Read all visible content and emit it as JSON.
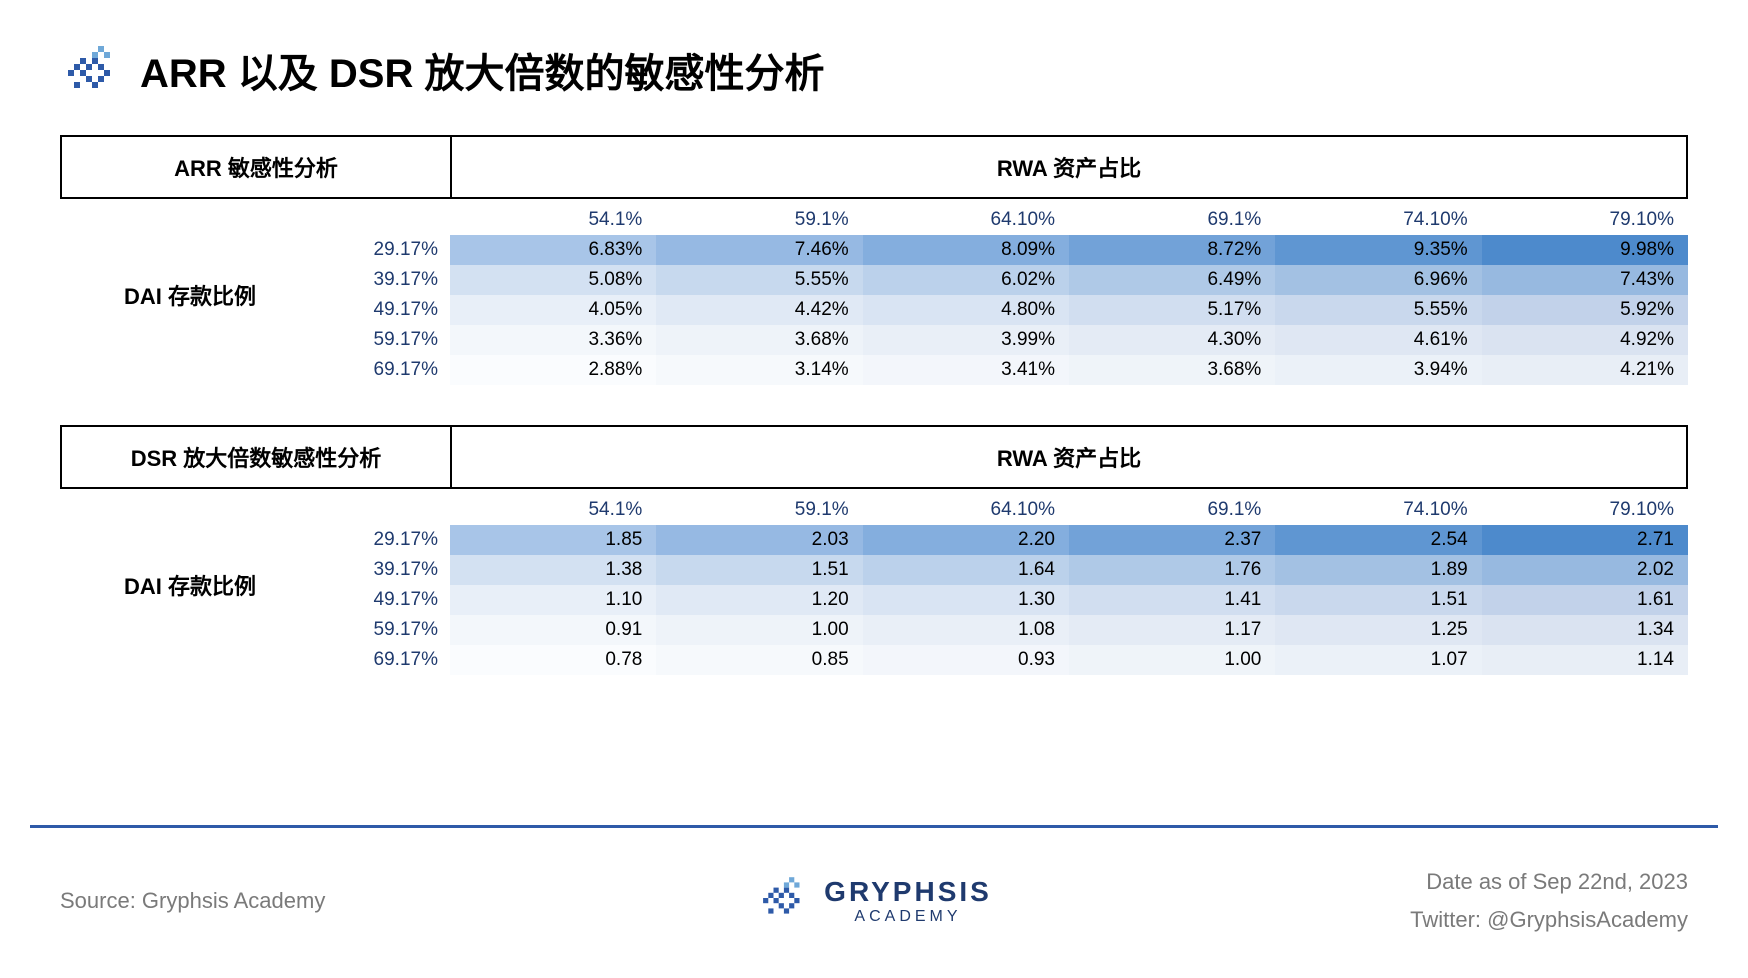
{
  "title": "ARR 以及 DSR 放大倍数的敏感性分析",
  "tables": [
    {
      "left_header": "ARR 敏感性分析",
      "right_header": "RWA 资产占比",
      "row_axis_label": "DAI 存款比例",
      "col_headers": [
        "54.1%",
        "59.1%",
        "64.10%",
        "69.1%",
        "74.10%",
        "79.10%"
      ],
      "row_headers": [
        "29.17%",
        "39.17%",
        "49.17%",
        "59.17%",
        "69.17%"
      ],
      "cells": [
        [
          "6.83%",
          "7.46%",
          "8.09%",
          "8.72%",
          "9.35%",
          "9.98%"
        ],
        [
          "5.08%",
          "5.55%",
          "6.02%",
          "6.49%",
          "6.96%",
          "7.43%"
        ],
        [
          "4.05%",
          "4.42%",
          "4.80%",
          "5.17%",
          "5.55%",
          "5.92%"
        ],
        [
          "3.36%",
          "3.68%",
          "3.99%",
          "4.30%",
          "4.61%",
          "4.92%"
        ],
        [
          "2.88%",
          "3.14%",
          "3.41%",
          "3.68%",
          "3.94%",
          "4.21%"
        ]
      ],
      "cell_colors": [
        [
          "#a8c5e8",
          "#96b9e3",
          "#84aede",
          "#72a2d8",
          "#5f96d2",
          "#4d8acc"
        ],
        [
          "#d3e1f2",
          "#c7d9ee",
          "#bbd1eb",
          "#afc9e7",
          "#a3c1e3",
          "#97b9e0"
        ],
        [
          "#e8eff8",
          "#e0e9f5",
          "#d9e4f3",
          "#d1def0",
          "#c9d8ed",
          "#c2d2ea"
        ],
        [
          "#f3f7fb",
          "#eef3f9",
          "#e9eff7",
          "#e4ebf5",
          "#dfe7f3",
          "#dae3f1"
        ],
        [
          "#fafcfe",
          "#f6f9fc",
          "#f3f6fb",
          "#eff4f9",
          "#ebf1f8",
          "#e8eef6"
        ]
      ]
    },
    {
      "left_header": "DSR 放大倍数敏感性分析",
      "right_header": "RWA 资产占比",
      "row_axis_label": "DAI 存款比例",
      "col_headers": [
        "54.1%",
        "59.1%",
        "64.10%",
        "69.1%",
        "74.10%",
        "79.10%"
      ],
      "row_headers": [
        "29.17%",
        "39.17%",
        "49.17%",
        "59.17%",
        "69.17%"
      ],
      "cells": [
        [
          "1.85",
          "2.03",
          "2.20",
          "2.37",
          "2.54",
          "2.71"
        ],
        [
          "1.38",
          "1.51",
          "1.64",
          "1.76",
          "1.89",
          "2.02"
        ],
        [
          "1.10",
          "1.20",
          "1.30",
          "1.41",
          "1.51",
          "1.61"
        ],
        [
          "0.91",
          "1.00",
          "1.08",
          "1.17",
          "1.25",
          "1.34"
        ],
        [
          "0.78",
          "0.85",
          "0.93",
          "1.00",
          "1.07",
          "1.14"
        ]
      ],
      "cell_colors": [
        [
          "#a8c5e8",
          "#96b9e3",
          "#84aede",
          "#72a2d8",
          "#5f96d2",
          "#4d8acc"
        ],
        [
          "#d3e1f2",
          "#c7d9ee",
          "#bbd1eb",
          "#afc9e7",
          "#a3c1e3",
          "#97b9e0"
        ],
        [
          "#e8eff8",
          "#e0e9f5",
          "#d9e4f3",
          "#d1def0",
          "#c9d8ed",
          "#c2d2ea"
        ],
        [
          "#f3f7fb",
          "#eef3f9",
          "#e9eff7",
          "#e4ebf5",
          "#dfe7f3",
          "#dae3f1"
        ],
        [
          "#fafcfe",
          "#f6f9fc",
          "#f3f6fb",
          "#eff4f9",
          "#ebf1f8",
          "#e8eef6"
        ]
      ]
    }
  ],
  "footer": {
    "source": "Source: Gryphsis Academy",
    "brand_name": "GRYPHSIS",
    "brand_sub": "ACADEMY",
    "date": "Date as of Sep 22nd, 2023",
    "twitter": "Twitter: @GryphsisAcademy"
  },
  "colors": {
    "accent": "#2e5aa8",
    "header_text": "#1f3a6e"
  }
}
